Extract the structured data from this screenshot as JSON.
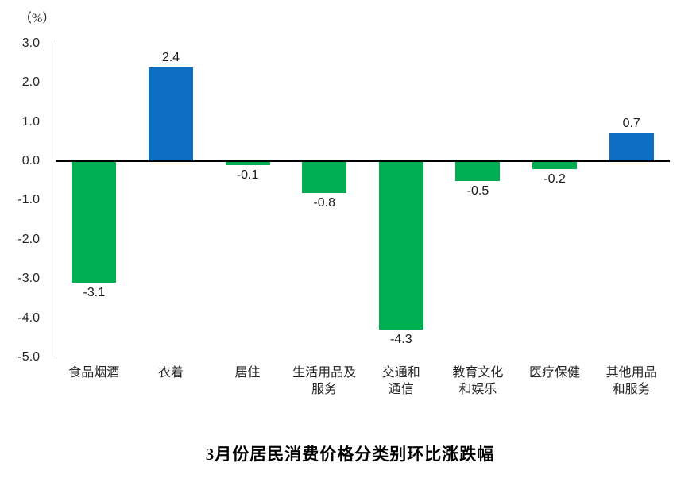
{
  "title": "3月份居民消费价格分类别环比涨跌幅",
  "chart_data": {
    "type": "bar",
    "title": "3月份居民消费价格分类别环比涨跌幅",
    "ylabel": "（%）",
    "xlabel": "",
    "categories": [
      "食品烟酒",
      "衣着",
      "居住",
      "生活用品及\n服务",
      "交通和\n通信",
      "教育文化\n和娱乐",
      "医疗保健",
      "其他用品\n和服务"
    ],
    "values": [
      -3.1,
      2.4,
      -0.1,
      -0.8,
      -4.3,
      -0.5,
      -0.2,
      0.7
    ],
    "value_labels": [
      "-3.1",
      "2.4",
      "-0.1",
      "-0.8",
      "-4.3",
      "-0.5",
      "-0.2",
      "0.7"
    ],
    "y_ticks": [
      3.0,
      2.0,
      1.0,
      0.0,
      -1.0,
      -2.0,
      -3.0,
      -4.0,
      -5.0
    ],
    "y_tick_labels": [
      "3.0",
      "2.0",
      "1.0",
      "0.0",
      "-1.0",
      "-2.0",
      "-3.0",
      "-4.0",
      "-5.0"
    ],
    "ylim": [
      -5.0,
      3.0
    ],
    "grid": false,
    "legend": false,
    "positive_color": "#0d6fc1",
    "negative_color": "#00ad50"
  }
}
